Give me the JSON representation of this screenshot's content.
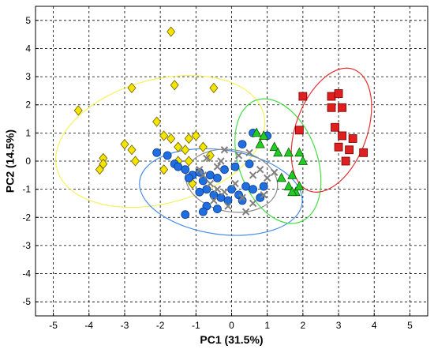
{
  "chart_data": {
    "type": "scatter",
    "xlabel": "PC1 (31.5%)",
    "ylabel": "PC2 (14.5%)",
    "xlim": [
      -5.5,
      5.5
    ],
    "ylim": [
      -5.5,
      5.5
    ],
    "x_ticks": [
      -5,
      -4,
      -3,
      -2,
      -1,
      0,
      1,
      2,
      3,
      4,
      5
    ],
    "y_ticks": [
      -5,
      -4,
      -3,
      -2,
      -1,
      0,
      1,
      2,
      3,
      4,
      5
    ],
    "grid": true,
    "grid_style": "dashed",
    "series": [
      {
        "marker": "diamond",
        "color": "#f5e400",
        "ellipse_color": "#f5f35a",
        "ellipse": {
          "cx": -2.0,
          "cy": 0.7,
          "rx": 3.0,
          "ry": 2.2,
          "angle": -15
        },
        "points": [
          [
            -1.7,
            4.6
          ],
          [
            -4.3,
            1.8
          ],
          [
            -2.8,
            2.6
          ],
          [
            -1.6,
            2.7
          ],
          [
            -0.5,
            2.6
          ],
          [
            -2.1,
            1.4
          ],
          [
            -1.9,
            0.9
          ],
          [
            -1.7,
            0.8
          ],
          [
            -1.5,
            0.5
          ],
          [
            -1.3,
            0.4
          ],
          [
            -1.0,
            0.9
          ],
          [
            -1.2,
            0.8
          ],
          [
            -3.0,
            0.6
          ],
          [
            -2.8,
            0.4
          ],
          [
            -3.6,
            0.1
          ],
          [
            -3.6,
            -0.1
          ],
          [
            -3.7,
            -0.3
          ],
          [
            -2.7,
            0.0
          ],
          [
            -1.5,
            0.0
          ],
          [
            -1.9,
            -0.3
          ],
          [
            -1.2,
            0.0
          ],
          [
            -0.8,
            0.5
          ],
          [
            -0.6,
            0.2
          ],
          [
            -1.1,
            -0.8
          ]
        ]
      },
      {
        "marker": "circle",
        "color": "#1f6fe0",
        "ellipse_color": "#4a8ee8",
        "ellipse": {
          "cx": -0.3,
          "cy": -1.1,
          "rx": 2.3,
          "ry": 1.5,
          "angle": 8
        },
        "points": [
          [
            -2.1,
            0.3
          ],
          [
            -1.8,
            0.2
          ],
          [
            -1.6,
            -0.1
          ],
          [
            -1.5,
            -0.2
          ],
          [
            -1.3,
            -0.3
          ],
          [
            -1.1,
            -0.5
          ],
          [
            -0.9,
            -0.4
          ],
          [
            -1.2,
            -0.6
          ],
          [
            -0.8,
            -0.7
          ],
          [
            -0.6,
            -0.5
          ],
          [
            -0.4,
            -0.6
          ],
          [
            -0.2,
            -0.3
          ],
          [
            0.1,
            -0.2
          ],
          [
            -0.7,
            -1.0
          ],
          [
            -0.9,
            -1.1
          ],
          [
            -0.5,
            -1.2
          ],
          [
            -0.3,
            -1.3
          ],
          [
            0.0,
            -1.0
          ],
          [
            -0.1,
            -1.4
          ],
          [
            0.2,
            -1.2
          ],
          [
            -0.7,
            -1.6
          ],
          [
            -0.8,
            -1.8
          ],
          [
            -1.3,
            -1.9
          ],
          [
            -0.4,
            -1.7
          ],
          [
            0.4,
            -0.9
          ],
          [
            0.6,
            -1.0
          ],
          [
            0.9,
            -0.9
          ],
          [
            1.0,
            0.9
          ],
          [
            0.6,
            1.0
          ],
          [
            0.3,
            0.6
          ],
          [
            0.5,
            -0.1
          ],
          [
            0.3,
            -1.4
          ],
          [
            0.8,
            -1.3
          ]
        ]
      },
      {
        "marker": "x",
        "color": "#808080",
        "ellipse_color": "#8a8a8a",
        "ellipse": {
          "cx": 0.0,
          "cy": -0.7,
          "rx": 1.3,
          "ry": 1.1,
          "angle": 10
        },
        "points": [
          [
            -0.8,
            -0.5
          ],
          [
            -0.6,
            -0.8
          ],
          [
            -0.4,
            -1.0
          ],
          [
            -0.5,
            -1.4
          ],
          [
            -0.2,
            -1.1
          ],
          [
            -0.1,
            -1.6
          ],
          [
            0.1,
            -0.8
          ],
          [
            0.3,
            -1.3
          ],
          [
            0.4,
            -1.8
          ],
          [
            0.6,
            -1.5
          ],
          [
            0.9,
            -1.2
          ],
          [
            1.0,
            -0.6
          ],
          [
            1.2,
            -0.4
          ],
          [
            0.8,
            -0.3
          ],
          [
            0.6,
            -0.5
          ],
          [
            0.5,
            0.3
          ],
          [
            0.2,
            0.2
          ],
          [
            -0.2,
            0.4
          ],
          [
            -0.3,
            0.0
          ],
          [
            -0.7,
            0.1
          ],
          [
            -0.9,
            -0.3
          ],
          [
            -0.4,
            -0.2
          ]
        ]
      },
      {
        "marker": "triangle",
        "color": "#22cc22",
        "ellipse_color": "#44dd44",
        "ellipse": {
          "cx": 1.3,
          "cy": 0.0,
          "rx": 1.1,
          "ry": 2.3,
          "angle": -20
        },
        "points": [
          [
            0.7,
            1.0
          ],
          [
            0.9,
            0.9
          ],
          [
            0.8,
            0.6
          ],
          [
            1.2,
            0.5
          ],
          [
            1.3,
            0.3
          ],
          [
            1.6,
            0.3
          ],
          [
            1.9,
            0.3
          ],
          [
            2.0,
            0.0
          ],
          [
            1.4,
            -0.6
          ],
          [
            1.7,
            -0.5
          ],
          [
            1.6,
            -0.9
          ],
          [
            1.8,
            -1.1
          ],
          [
            1.9,
            -0.9
          ],
          [
            1.7,
            -1.1
          ]
        ]
      },
      {
        "marker": "square",
        "color": "#e02020",
        "ellipse_color": "#e83030",
        "ellipse": {
          "cx": 2.8,
          "cy": 1.1,
          "rx": 1.0,
          "ry": 2.3,
          "angle": 20
        },
        "points": [
          [
            2.0,
            2.3
          ],
          [
            2.8,
            2.3
          ],
          [
            3.0,
            2.4
          ],
          [
            2.8,
            1.9
          ],
          [
            3.1,
            1.9
          ],
          [
            1.9,
            1.1
          ],
          [
            2.9,
            1.2
          ],
          [
            3.1,
            0.9
          ],
          [
            3.4,
            0.8
          ],
          [
            3.0,
            0.5
          ],
          [
            3.3,
            0.4
          ],
          [
            3.7,
            0.3
          ],
          [
            3.2,
            0.0
          ]
        ]
      }
    ]
  }
}
